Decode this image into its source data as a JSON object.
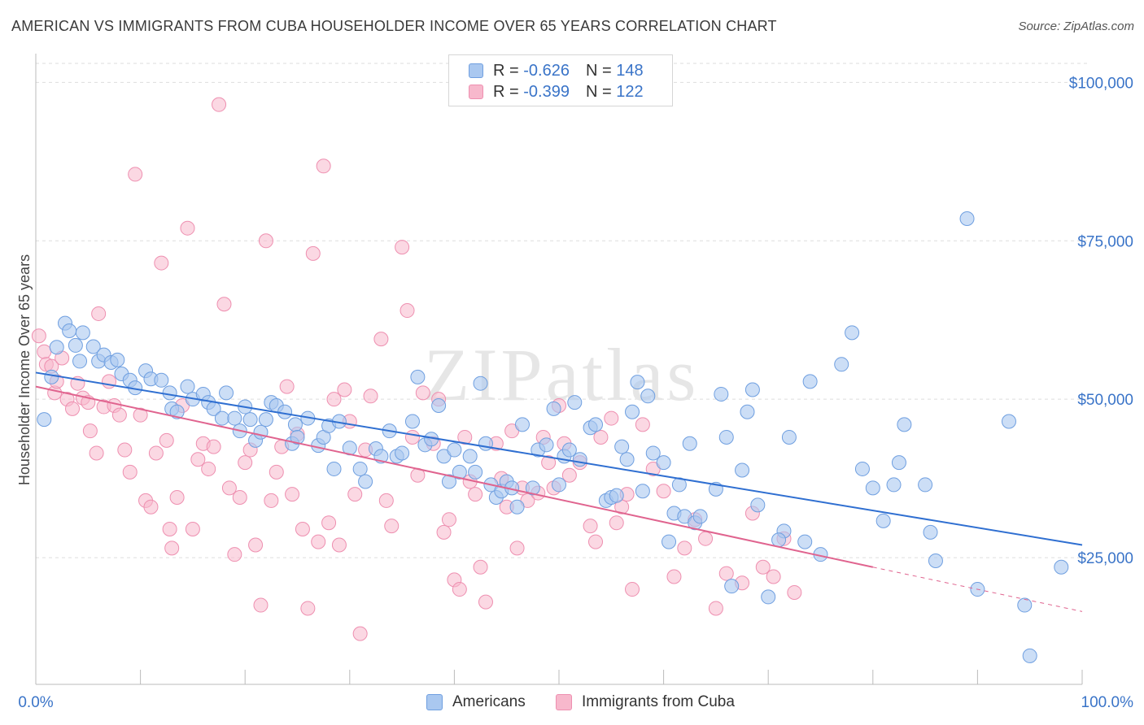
{
  "title": "AMERICAN VS IMMIGRANTS FROM CUBA HOUSEHOLDER INCOME OVER 65 YEARS CORRELATION CHART",
  "source": "Source: ZipAtlas.com",
  "watermark": "ZIPatlas",
  "legend": {
    "r_label": "R =",
    "n_label": "N =",
    "americans": {
      "r": "-0.626",
      "n": "148"
    },
    "cuba": {
      "r": "-0.399",
      "n": "122"
    }
  },
  "bottom_legend": {
    "americans": "Americans",
    "cuba": "Immigrants from Cuba"
  },
  "colors": {
    "americans_fill": "#aac8f0",
    "americans_stroke": "#6f9fe0",
    "americans_line": "#2f6fd1",
    "cuba_fill": "#f7b8cc",
    "cuba_stroke": "#ee8fb0",
    "cuba_line": "#e0648f",
    "tick_label": "#3a74c8",
    "grid": "#dddddd"
  },
  "chart_data": {
    "type": "scatter",
    "title": "AMERICAN VS IMMIGRANTS FROM CUBA HOUSEHOLDER INCOME OVER 65 YEARS CORRELATION CHART",
    "xlabel": "",
    "ylabel": "Householder Income Over 65 years",
    "xlim": [
      0,
      100
    ],
    "ylim": [
      5000,
      103000
    ],
    "x_tick_labels": [
      "0.0%",
      "100.0%"
    ],
    "y_ticks": [
      25000,
      50000,
      75000,
      100000
    ],
    "y_tick_labels": [
      "$25,000",
      "$50,000",
      "$75,000",
      "$100,000"
    ],
    "grid": true,
    "legend_position": "top-center",
    "series": [
      {
        "name": "Americans",
        "trend": {
          "x": [
            0,
            100
          ],
          "y": [
            54200,
            27000
          ]
        },
        "points": [
          [
            0.8,
            46800
          ],
          [
            1.5,
            53500
          ],
          [
            2.0,
            58200
          ],
          [
            2.8,
            62000
          ],
          [
            3.2,
            60800
          ],
          [
            3.8,
            58500
          ],
          [
            4.2,
            56000
          ],
          [
            4.5,
            60500
          ],
          [
            5.5,
            58300
          ],
          [
            6.0,
            56000
          ],
          [
            6.5,
            57000
          ],
          [
            7.2,
            55800
          ],
          [
            7.8,
            56200
          ],
          [
            8.2,
            54000
          ],
          [
            9.0,
            53000
          ],
          [
            9.5,
            51800
          ],
          [
            10.5,
            54500
          ],
          [
            11.0,
            53200
          ],
          [
            12.0,
            53000
          ],
          [
            12.8,
            51000
          ],
          [
            13.0,
            48500
          ],
          [
            13.5,
            48000
          ],
          [
            14.5,
            52000
          ],
          [
            15.0,
            50000
          ],
          [
            16.0,
            50800
          ],
          [
            16.5,
            49500
          ],
          [
            17.0,
            48500
          ],
          [
            17.8,
            47000
          ],
          [
            18.2,
            51000
          ],
          [
            19.0,
            47000
          ],
          [
            19.5,
            45000
          ],
          [
            20.0,
            48800
          ],
          [
            20.5,
            46800
          ],
          [
            21.0,
            43500
          ],
          [
            21.5,
            44800
          ],
          [
            22.0,
            46800
          ],
          [
            22.5,
            49500
          ],
          [
            23.0,
            49000
          ],
          [
            23.8,
            48000
          ],
          [
            24.5,
            43000
          ],
          [
            24.8,
            46000
          ],
          [
            25.0,
            44000
          ],
          [
            26.0,
            47000
          ],
          [
            27.0,
            42700
          ],
          [
            27.5,
            44000
          ],
          [
            28.0,
            45800
          ],
          [
            28.5,
            39000
          ],
          [
            29.0,
            46500
          ],
          [
            30.0,
            42300
          ],
          [
            31.0,
            39000
          ],
          [
            31.5,
            37000
          ],
          [
            32.5,
            42200
          ],
          [
            33.0,
            41000
          ],
          [
            33.8,
            45000
          ],
          [
            34.5,
            41000
          ],
          [
            35.0,
            41500
          ],
          [
            36.0,
            46500
          ],
          [
            36.5,
            53500
          ],
          [
            37.2,
            42800
          ],
          [
            37.8,
            43700
          ],
          [
            38.5,
            49000
          ],
          [
            39.0,
            41000
          ],
          [
            39.5,
            37000
          ],
          [
            40.0,
            42000
          ],
          [
            40.5,
            38500
          ],
          [
            41.5,
            41000
          ],
          [
            42.0,
            38500
          ],
          [
            42.5,
            52500
          ],
          [
            43.0,
            43000
          ],
          [
            43.5,
            36500
          ],
          [
            44.0,
            34500
          ],
          [
            44.5,
            35500
          ],
          [
            45.0,
            37000
          ],
          [
            45.5,
            36000
          ],
          [
            46.0,
            33000
          ],
          [
            46.5,
            46000
          ],
          [
            47.5,
            36000
          ],
          [
            48.0,
            42000
          ],
          [
            48.8,
            42800
          ],
          [
            49.5,
            48500
          ],
          [
            50.0,
            36500
          ],
          [
            50.5,
            41000
          ],
          [
            51.0,
            42000
          ],
          [
            51.5,
            49500
          ],
          [
            52.0,
            40500
          ],
          [
            53.0,
            45500
          ],
          [
            53.5,
            46000
          ],
          [
            54.5,
            34000
          ],
          [
            55.0,
            34500
          ],
          [
            55.5,
            34800
          ],
          [
            56.0,
            42500
          ],
          [
            56.5,
            40500
          ],
          [
            57.0,
            48000
          ],
          [
            57.5,
            52700
          ],
          [
            58.0,
            35500
          ],
          [
            58.5,
            50500
          ],
          [
            59.0,
            41500
          ],
          [
            60.0,
            40000
          ],
          [
            60.5,
            27500
          ],
          [
            61.0,
            32000
          ],
          [
            61.5,
            36500
          ],
          [
            62.0,
            31500
          ],
          [
            62.5,
            43000
          ],
          [
            63.0,
            30500
          ],
          [
            63.5,
            31500
          ],
          [
            65.0,
            35800
          ],
          [
            65.5,
            50800
          ],
          [
            66.0,
            44000
          ],
          [
            66.5,
            20500
          ],
          [
            67.5,
            38800
          ],
          [
            68.0,
            48000
          ],
          [
            68.5,
            51500
          ],
          [
            69.0,
            33300
          ],
          [
            70.0,
            18800
          ],
          [
            71.5,
            29200
          ],
          [
            71.0,
            27800
          ],
          [
            72.0,
            44000
          ],
          [
            73.5,
            27500
          ],
          [
            74.0,
            52800
          ],
          [
            75.0,
            25500
          ],
          [
            77.0,
            55500
          ],
          [
            78.0,
            60500
          ],
          [
            79.0,
            39000
          ],
          [
            80.0,
            36000
          ],
          [
            81.0,
            30800
          ],
          [
            82.0,
            36500
          ],
          [
            82.5,
            40000
          ],
          [
            83.0,
            46000
          ],
          [
            85.0,
            36500
          ],
          [
            85.5,
            29000
          ],
          [
            86.0,
            24500
          ],
          [
            89.0,
            78500
          ],
          [
            90.0,
            20000
          ],
          [
            93.0,
            46500
          ],
          [
            94.5,
            17500
          ],
          [
            95.0,
            9500
          ],
          [
            98.0,
            23500
          ]
        ]
      },
      {
        "name": "Immigrants from Cuba",
        "trend": {
          "x": [
            0,
            80
          ],
          "y": [
            52000,
            23500
          ]
        },
        "trend_dashed": {
          "x": [
            80,
            100
          ],
          "y": [
            23500,
            16500
          ]
        },
        "points": [
          [
            0.3,
            60000
          ],
          [
            0.8,
            57500
          ],
          [
            1.0,
            55500
          ],
          [
            1.5,
            55200
          ],
          [
            1.8,
            51000
          ],
          [
            2.0,
            52800
          ],
          [
            2.5,
            56500
          ],
          [
            3.0,
            50000
          ],
          [
            3.5,
            48500
          ],
          [
            4.0,
            52500
          ],
          [
            4.5,
            50200
          ],
          [
            5.0,
            49500
          ],
          [
            5.2,
            45000
          ],
          [
            5.8,
            41500
          ],
          [
            6.0,
            63500
          ],
          [
            6.5,
            48800
          ],
          [
            7.0,
            52800
          ],
          [
            7.5,
            49000
          ],
          [
            8.0,
            47500
          ],
          [
            8.5,
            42000
          ],
          [
            9.0,
            38500
          ],
          [
            9.5,
            85500
          ],
          [
            10.0,
            47500
          ],
          [
            10.5,
            34000
          ],
          [
            11.0,
            33000
          ],
          [
            11.5,
            41500
          ],
          [
            12.0,
            71500
          ],
          [
            12.5,
            43500
          ],
          [
            12.8,
            29500
          ],
          [
            13.0,
            26500
          ],
          [
            13.5,
            34500
          ],
          [
            14.0,
            49000
          ],
          [
            14.5,
            77000
          ],
          [
            15.0,
            29500
          ],
          [
            15.5,
            40500
          ],
          [
            16.0,
            43000
          ],
          [
            16.5,
            39000
          ],
          [
            17.0,
            42500
          ],
          [
            17.5,
            96500
          ],
          [
            18.0,
            65000
          ],
          [
            18.5,
            36000
          ],
          [
            19.0,
            25500
          ],
          [
            19.5,
            34500
          ],
          [
            20.0,
            40000
          ],
          [
            20.5,
            42000
          ],
          [
            21.0,
            27000
          ],
          [
            21.5,
            17500
          ],
          [
            22.0,
            75000
          ],
          [
            22.5,
            34000
          ],
          [
            23.0,
            38500
          ],
          [
            23.5,
            42500
          ],
          [
            24.0,
            52000
          ],
          [
            24.5,
            35000
          ],
          [
            25.0,
            44500
          ],
          [
            25.5,
            29500
          ],
          [
            26.0,
            17000
          ],
          [
            26.5,
            73000
          ],
          [
            27.0,
            27500
          ],
          [
            27.5,
            86800
          ],
          [
            28.0,
            30500
          ],
          [
            28.5,
            50000
          ],
          [
            29.0,
            27000
          ],
          [
            29.5,
            51500
          ],
          [
            30.0,
            46500
          ],
          [
            30.5,
            35000
          ],
          [
            31.0,
            13000
          ],
          [
            31.5,
            42000
          ],
          [
            32.0,
            50500
          ],
          [
            33.0,
            59500
          ],
          [
            33.5,
            34000
          ],
          [
            34.0,
            30000
          ],
          [
            35.0,
            74000
          ],
          [
            35.5,
            64000
          ],
          [
            36.0,
            44000
          ],
          [
            36.5,
            38000
          ],
          [
            37.0,
            51000
          ],
          [
            38.0,
            43000
          ],
          [
            38.5,
            50000
          ],
          [
            39.0,
            29000
          ],
          [
            39.5,
            31000
          ],
          [
            40.0,
            21500
          ],
          [
            40.5,
            20000
          ],
          [
            41.0,
            44000
          ],
          [
            41.5,
            37000
          ],
          [
            42.0,
            35000
          ],
          [
            42.5,
            23500
          ],
          [
            43.0,
            18000
          ],
          [
            44.0,
            43000
          ],
          [
            44.5,
            37500
          ],
          [
            45.0,
            33000
          ],
          [
            45.5,
            45000
          ],
          [
            46.0,
            26500
          ],
          [
            46.5,
            36000
          ],
          [
            47.0,
            34000
          ],
          [
            48.0,
            35200
          ],
          [
            48.5,
            44000
          ],
          [
            49.0,
            40000
          ],
          [
            49.5,
            36000
          ],
          [
            50.0,
            49000
          ],
          [
            50.5,
            43000
          ],
          [
            51.0,
            38000
          ],
          [
            52.0,
            40000
          ],
          [
            53.0,
            30000
          ],
          [
            53.5,
            27500
          ],
          [
            54.0,
            44000
          ],
          [
            55.0,
            47000
          ],
          [
            55.5,
            30500
          ],
          [
            56.0,
            33000
          ],
          [
            56.5,
            35000
          ],
          [
            57.0,
            20000
          ],
          [
            58.0,
            46000
          ],
          [
            59.0,
            39000
          ],
          [
            60.0,
            35500
          ],
          [
            61.0,
            22000
          ],
          [
            62.0,
            26500
          ],
          [
            63.0,
            31000
          ],
          [
            64.0,
            28000
          ],
          [
            65.0,
            17000
          ],
          [
            66.0,
            22500
          ],
          [
            67.5,
            21000
          ],
          [
            68.5,
            32000
          ],
          [
            69.5,
            23500
          ],
          [
            70.5,
            22000
          ],
          [
            71.5,
            28000
          ],
          [
            72.5,
            19500
          ]
        ]
      }
    ]
  }
}
